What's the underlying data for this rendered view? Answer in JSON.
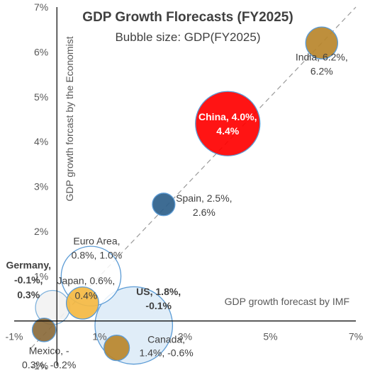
{
  "chart_data": {
    "type": "bubble",
    "title": "GDP Growth Florecasts (FY2025)",
    "subtitle": "Bubble size: GDP(FY2025)",
    "xlabel": "GDP growth forecast by IMF",
    "ylabel": "GDP growth forcast by the Economist",
    "xlim": [
      -1,
      7
    ],
    "ylim": [
      -1,
      7
    ],
    "x_ticks": [
      "-1%",
      "1%",
      "3%",
      "5%",
      "7%"
    ],
    "y_ticks": [
      "-1%",
      "1%",
      "2%",
      "3%",
      "4%",
      "5%",
      "6%",
      "7%"
    ],
    "diagonal_reference_line": true,
    "gridlines": false,
    "points": [
      {
        "name": "India",
        "x": 6.2,
        "y": 6.2,
        "gdp": 4.0,
        "color": "#b8862b",
        "label_lines": [
          "India, 6.2%,",
          "6.2%"
        ],
        "bold": false
      },
      {
        "name": "China",
        "x": 4.0,
        "y": 4.4,
        "gdp": 19.5,
        "color": "#ff0000",
        "label_lines": [
          "China, 4.0%,",
          "4.4%"
        ],
        "bold": true,
        "label_color": "#ffffff"
      },
      {
        "name": "Spain",
        "x": 2.5,
        "y": 2.6,
        "gdp": 1.7,
        "color": "#2e5f8a",
        "label_lines": [
          "Spain, 2.5%,",
          "2.6%"
        ],
        "bold": false
      },
      {
        "name": "Euro Area",
        "x": 0.8,
        "y": 1.0,
        "gdp": 16.5,
        "color": "#ffffff",
        "stroke": "#5b9bd5",
        "label_lines": [
          "Euro Area,",
          "0.8%, 1.0%"
        ],
        "bold": false
      },
      {
        "name": "Japan",
        "x": 0.6,
        "y": 0.4,
        "gdp": 4.1,
        "color": "#f4b942",
        "label_lines": [
          "Japan, 0.6%,",
          "0.4%"
        ],
        "bold": false
      },
      {
        "name": "Germany",
        "x": -0.1,
        "y": 0.3,
        "gdp": 4.7,
        "color": "#f2f2f2",
        "stroke": "#7fb2dc",
        "label_lines": [
          "Germany,",
          "-0.1%,",
          "0.3%"
        ],
        "bold": true
      },
      {
        "name": "US",
        "x": 1.8,
        "y": -0.1,
        "gdp": 29.0,
        "color": "#ddebf7",
        "stroke": "#5b9bd5",
        "label_lines": [
          "US, 1.8%,",
          "-0.1%"
        ],
        "bold": true
      },
      {
        "name": "Canada",
        "x": 1.4,
        "y": -0.6,
        "gdp": 2.3,
        "color": "#b8862b",
        "label_lines": [
          "Canada,",
          "1.4%, -0.6%"
        ],
        "bold": false
      },
      {
        "name": "Mexico",
        "x": -0.3,
        "y": -0.2,
        "gdp": 1.9,
        "color": "#8a6a3b",
        "label_lines": [
          "Mexico, -",
          "0.3%, -0.2%"
        ],
        "bold": false
      }
    ]
  }
}
